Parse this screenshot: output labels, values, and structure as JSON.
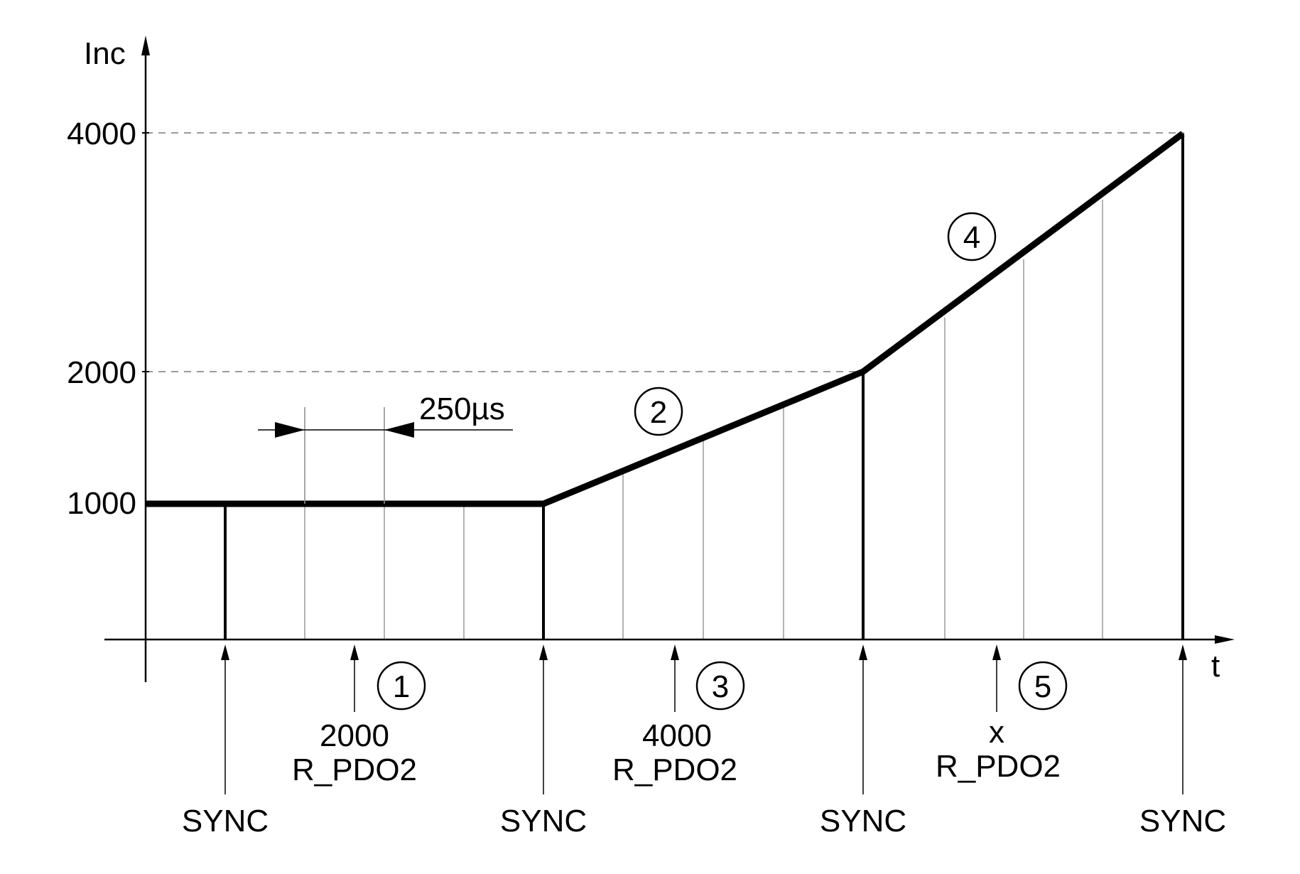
{
  "axes": {
    "y_label": "Inc",
    "x_label": "t",
    "y_ticks": [
      "4000",
      "2000",
      "1000"
    ]
  },
  "interval_label": "250µs",
  "markers": [
    "1",
    "2",
    "3",
    "4",
    "5"
  ],
  "values": {
    "first": "2000",
    "second": "4000",
    "third": "x"
  },
  "pdo_label": "R_PDO2",
  "sync_label": "SYNC",
  "colors": {
    "line": "#000000",
    "thin_line": "#9a9a9a",
    "dashed": "#7a7a7a"
  }
}
